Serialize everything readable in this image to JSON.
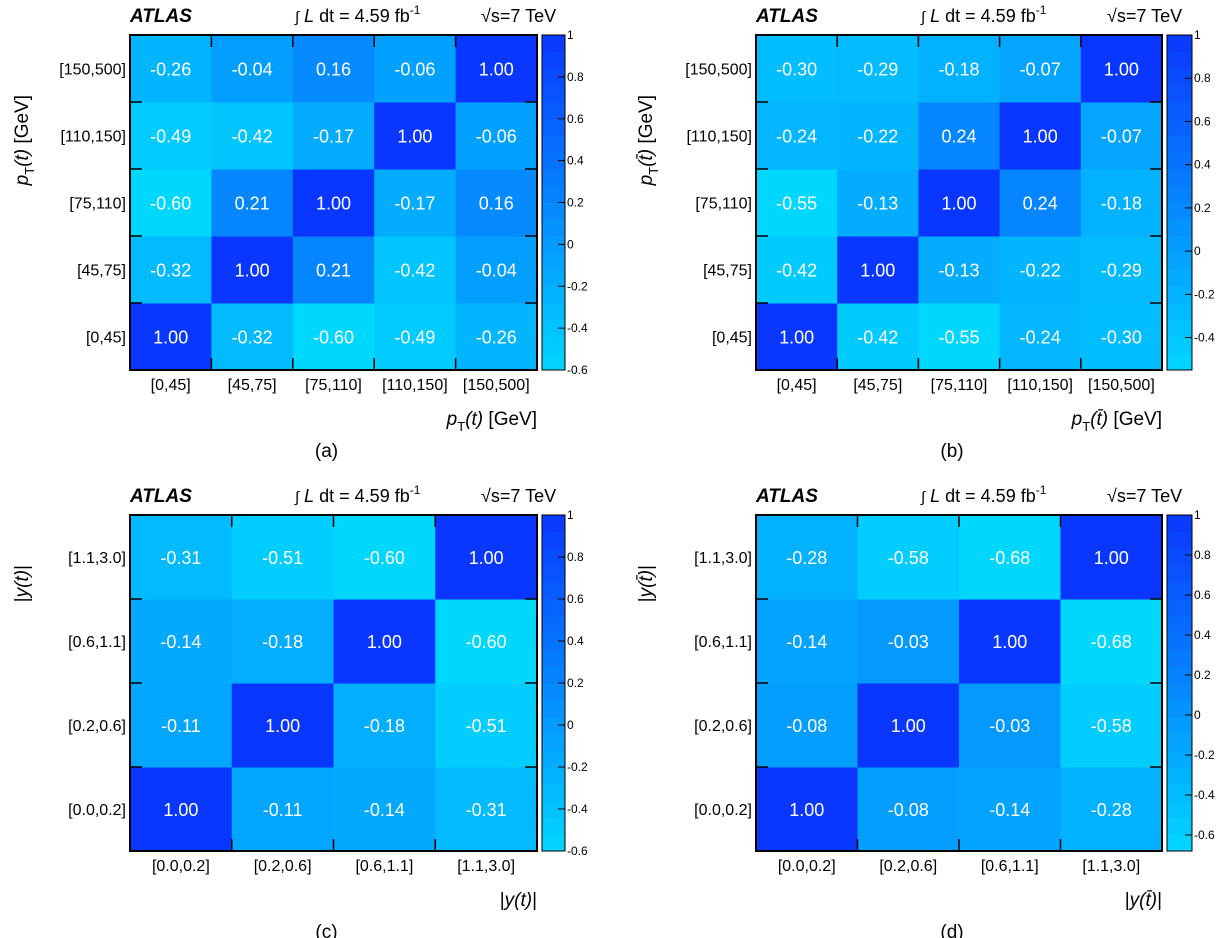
{
  "figure": {
    "experiment": "ATLAS",
    "lumi_prefix": "∫",
    "lumi_main": " L dt = 4.59 fb",
    "lumi_sup": "-1",
    "sqrt_symbol": "√",
    "energy": "s=7 TeV"
  },
  "colors": {
    "scale_min": "#00d7ff",
    "scale_max": "#0a37ff",
    "cell_text": "#ffffff",
    "frame": "#000000"
  },
  "chart_data": [
    {
      "type": "heatmap",
      "panel_label": "(a)",
      "xlabel": "p_T(t) [GeV]",
      "ylabel": "p_T(t) [GeV]",
      "x_tick_labels": [
        "[0,45]",
        "[45,75]",
        "[75,110]",
        "[110,150]",
        "[150,500]"
      ],
      "y_tick_labels": [
        "[0,45]",
        "[45,75]",
        "[75,110]",
        "[110,150]",
        "[150,500]"
      ],
      "values": [
        [
          1.0,
          -0.32,
          -0.6,
          -0.49,
          -0.26
        ],
        [
          -0.32,
          1.0,
          0.21,
          -0.42,
          -0.04
        ],
        [
          -0.6,
          0.21,
          1.0,
          -0.17,
          0.16
        ],
        [
          -0.49,
          -0.42,
          -0.17,
          1.0,
          -0.06
        ],
        [
          -0.26,
          -0.04,
          0.16,
          -0.06,
          1.0
        ]
      ],
      "zlim": [
        -0.6,
        1
      ],
      "colorbar_ticks": [
        "-0.6",
        "-0.4",
        "-0.2",
        "0",
        "0.2",
        "0.4",
        "0.6",
        "0.8",
        "1"
      ]
    },
    {
      "type": "heatmap",
      "panel_label": "(b)",
      "xlabel": "p_T(t̄) [GeV]",
      "ylabel": "p_T(t̄) [GeV]",
      "x_tick_labels": [
        "[0,45]",
        "[45,75]",
        "[75,110]",
        "[110,150]",
        "[150,500]"
      ],
      "y_tick_labels": [
        "[0,45]",
        "[45,75]",
        "[75,110]",
        "[110,150]",
        "[150,500]"
      ],
      "values": [
        [
          1.0,
          -0.42,
          -0.55,
          -0.24,
          -0.3
        ],
        [
          -0.42,
          1.0,
          -0.13,
          -0.22,
          -0.29
        ],
        [
          -0.55,
          -0.13,
          1.0,
          0.24,
          -0.18
        ],
        [
          -0.24,
          -0.22,
          0.24,
          1.0,
          -0.07
        ],
        [
          -0.3,
          -0.29,
          -0.18,
          -0.07,
          1.0
        ]
      ],
      "zlim": [
        -0.55,
        1
      ],
      "colorbar_ticks": [
        "-0.4",
        "-0.2",
        "0",
        "0.2",
        "0.4",
        "0.6",
        "0.8",
        "1"
      ]
    },
    {
      "type": "heatmap",
      "panel_label": "(c)",
      "xlabel": "|y(t)|",
      "ylabel": "|y(t)|",
      "x_tick_labels": [
        "[0.0,0.2]",
        "[0.2,0.6]",
        "[0.6,1.1]",
        "[1.1,3.0]"
      ],
      "y_tick_labels": [
        "[0.0,0.2]",
        "[0.2,0.6]",
        "[0.6,1.1]",
        "[1.1,3.0]"
      ],
      "values": [
        [
          1.0,
          -0.11,
          -0.14,
          -0.31
        ],
        [
          -0.11,
          1.0,
          -0.18,
          -0.51
        ],
        [
          -0.14,
          -0.18,
          1.0,
          -0.6
        ],
        [
          -0.31,
          -0.51,
          -0.6,
          1.0
        ]
      ],
      "zlim": [
        -0.6,
        1
      ],
      "colorbar_ticks": [
        "-0.6",
        "-0.4",
        "-0.2",
        "0",
        "0.2",
        "0.4",
        "0.6",
        "0.8",
        "1"
      ]
    },
    {
      "type": "heatmap",
      "panel_label": "(d)",
      "xlabel": "|y(t̄)|",
      "ylabel": "|y(t̄)|",
      "x_tick_labels": [
        "[0.0,0.2]",
        "[0.2,0.6]",
        "[0.6,1.1]",
        "[1.1,3.0]"
      ],
      "y_tick_labels": [
        "[0.0,0.2]",
        "[0.2,0.6]",
        "[0.6,1.1]",
        "[1.1,3.0]"
      ],
      "values": [
        [
          1.0,
          -0.08,
          -0.14,
          -0.28
        ],
        [
          -0.08,
          1.0,
          -0.03,
          -0.58
        ],
        [
          -0.14,
          -0.03,
          1.0,
          -0.68
        ],
        [
          -0.28,
          -0.58,
          -0.68,
          1.0
        ]
      ],
      "zlim": [
        -0.68,
        1
      ],
      "colorbar_ticks": [
        "-0.6",
        "-0.4",
        "-0.2",
        "0",
        "0.2",
        "0.4",
        "0.6",
        "0.8",
        "1"
      ]
    }
  ]
}
